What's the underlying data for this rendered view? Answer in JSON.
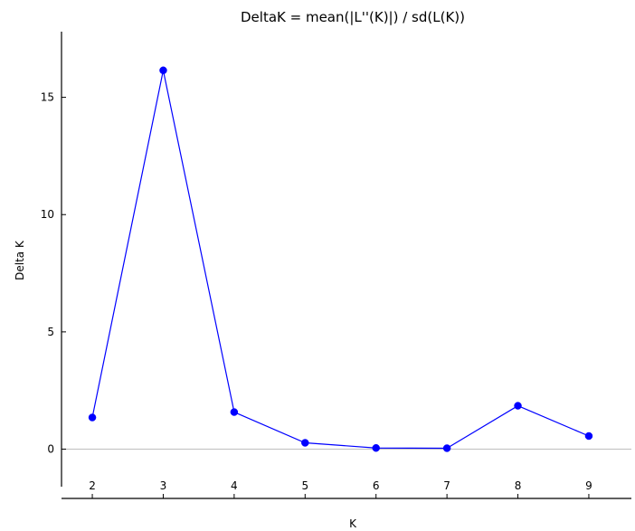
{
  "chart_data": {
    "type": "line",
    "title": "DeltaK = mean(|L''(K)|) / sd(L(K))",
    "xlabel": "K",
    "ylabel": "Delta K",
    "x": [
      2,
      3,
      4,
      5,
      6,
      7,
      8,
      9
    ],
    "series": [
      {
        "values": [
          1.35,
          16.15,
          1.58,
          0.27,
          0.05,
          0.04,
          1.85,
          0.56
        ]
      }
    ],
    "xlim": [
      1.4,
      9.6
    ],
    "ylim": [
      -1.6,
      17.8
    ],
    "xticks": [
      "2",
      "3",
      "4",
      "5",
      "6",
      "7",
      "8",
      "9"
    ],
    "yticks": [
      "0",
      "5",
      "10",
      "15"
    ],
    "reference_line_y": 0,
    "grid": false,
    "colors": {
      "series": "#0000ff",
      "reference_line": "#bfbfbf",
      "axes": "#000000"
    }
  }
}
